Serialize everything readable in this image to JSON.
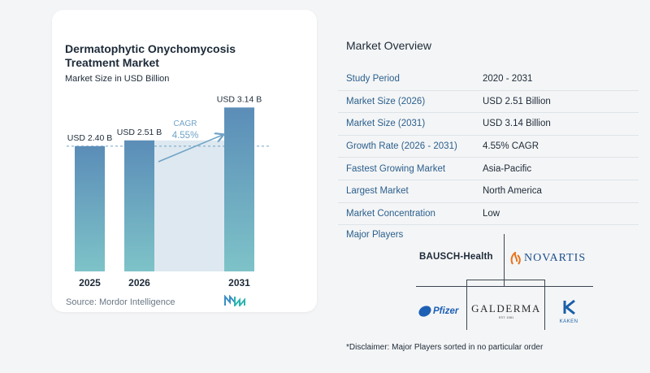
{
  "card": {
    "title_line1": "Dermatophytic Onychomycosis",
    "title_line2": "Treatment Market",
    "subtitle": "Market Size in USD Billion",
    "source": "Source:  Mordor Intelligence"
  },
  "chart_data": {
    "type": "bar",
    "categories": [
      "2025",
      "2026",
      "2031"
    ],
    "values": [
      2.4,
      2.51,
      3.14
    ],
    "value_labels": [
      "USD 2.40 B",
      "USD 2.51 B",
      "USD 3.14 B"
    ],
    "cagr_label": "CAGR",
    "cagr_value": "4.55%",
    "ylim": [
      0,
      3.3
    ],
    "grid": false,
    "colors": {
      "bar_top": "#5b8db8",
      "bar_bottom": "#7ec3c8",
      "shade": "#dde8f0",
      "dash": "#6fa3c6",
      "arrow": "#6fa3c6"
    }
  },
  "overview": {
    "title": "Market Overview",
    "rows": [
      {
        "label": "Study Period",
        "value": "2020 - 2031"
      },
      {
        "label": "Market Size (2026)",
        "value": "USD 2.51 Billion"
      },
      {
        "label": "Market Size (2031)",
        "value": "USD 3.14 Billion"
      },
      {
        "label": "Growth Rate (2026 - 2031)",
        "value": "4.55% CAGR"
      },
      {
        "label": "Fastest Growing Market",
        "value": "Asia-Pacific"
      },
      {
        "label": "Largest Market",
        "value": "North America"
      },
      {
        "label": "Market Concentration",
        "value": "Low"
      }
    ]
  },
  "players": {
    "title": "Major Players",
    "logos": {
      "bausch": "BAUSCH-Health",
      "novartis": "NOVARTIS",
      "pfizer": "Pfizer",
      "galderma": "GALDERMA",
      "galderma_sub": "EST. 1981",
      "kaken": "KAKEN"
    },
    "disclaimer": "*Disclaimer: Major Players sorted in no particular order"
  }
}
